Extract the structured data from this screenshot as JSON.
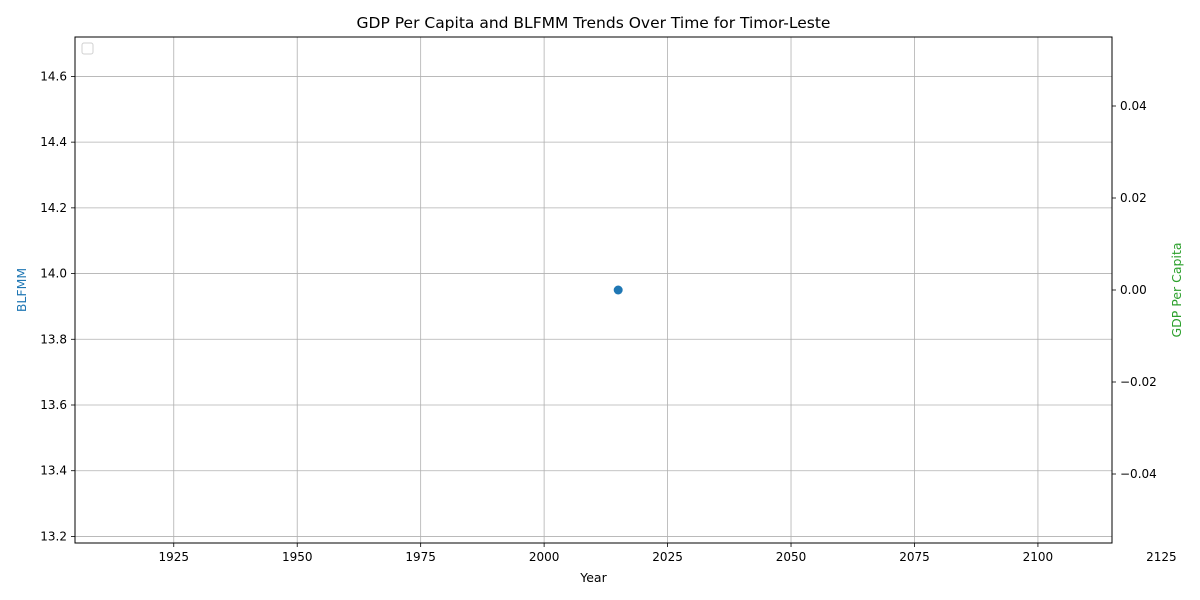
{
  "chart_data": {
    "type": "scatter",
    "title": "GDP Per Capita and BLFMM Trends Over Time for Timor-Leste",
    "xlabel": "Year",
    "ylabel_left": "BLFMM",
    "ylabel_right": "GDP Per Capita",
    "xlim": [
      1905,
      2115
    ],
    "ylim_left": [
      13.18,
      14.72
    ],
    "ylim_right": [
      -0.055,
      0.055
    ],
    "x_ticks": [
      1925,
      1950,
      1975,
      2000,
      2025,
      2050,
      2075,
      2100,
      2125
    ],
    "y_left_ticks": [
      13.2,
      13.4,
      13.6,
      13.8,
      14.0,
      14.2,
      14.4,
      14.6
    ],
    "y_left_tick_labels": [
      "13.2",
      "13.4",
      "13.6",
      "13.8",
      "14.0",
      "14.2",
      "14.4",
      "14.6"
    ],
    "y_right_ticks": [
      -0.04,
      -0.02,
      0.0,
      0.02,
      0.04
    ],
    "y_right_tick_labels": [
      "−0.04",
      "−0.02",
      "0.00",
      "0.02",
      "0.04"
    ],
    "grid": true,
    "legend": "top-left (empty)",
    "colors": {
      "left_axis": "#1f77b4",
      "right_axis": "#2ca02c",
      "point": "#1f77b4",
      "grid": "#b0b0b0"
    },
    "series": [
      {
        "axis": "left",
        "x": [
          2015
        ],
        "y": [
          13.95
        ]
      }
    ]
  }
}
